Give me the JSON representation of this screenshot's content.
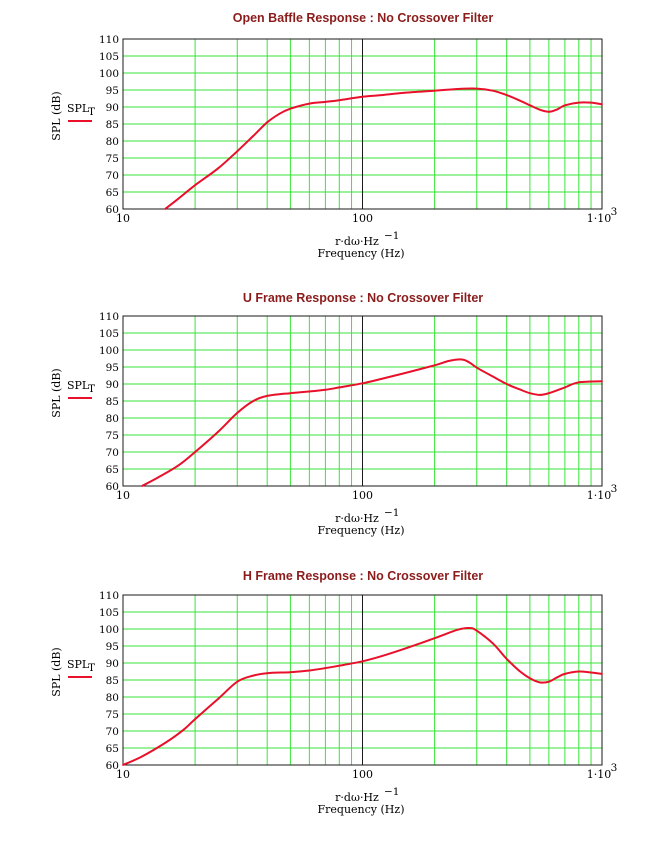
{
  "chart_data": [
    {
      "type": "line",
      "title": "Open Baffle Response : No Crossover Filter",
      "xlabel_expr": "r·dω·Hz",
      "xlabel_exp": "−1",
      "xlabel": "Frequency (Hz)",
      "ylabel": "SPL (dB)",
      "legend_main": "SPL",
      "legend_sub": "T",
      "xscale": "log",
      "xlim": [
        10,
        1000
      ],
      "ylim": [
        60,
        110
      ],
      "yticks": [
        "60",
        "65",
        "70",
        "75",
        "80",
        "85",
        "90",
        "95",
        "100",
        "105",
        "110"
      ],
      "xtick_labels": [
        "10",
        "100",
        "1·10",
        "3"
      ],
      "grid": true,
      "color": "#e8102a",
      "series": [
        {
          "x": [
            15,
            17,
            20,
            25,
            30,
            35,
            40,
            45,
            50,
            60,
            70,
            80,
            100,
            120,
            150,
            200,
            250,
            300,
            350,
            400,
            450,
            500,
            550,
            600,
            650,
            700,
            800,
            900,
            1000
          ],
          "values": [
            60,
            63,
            67,
            72,
            77,
            81.5,
            85.5,
            88,
            89.5,
            91,
            91.5,
            92,
            93,
            93.5,
            94.2,
            94.8,
            95.3,
            95.4,
            94.8,
            93.5,
            92,
            90.5,
            89.2,
            88.6,
            89.3,
            90.5,
            91.3,
            91.3,
            90.8
          ]
        }
      ]
    },
    {
      "type": "line",
      "title": "U Frame Response : No Crossover Filter",
      "xlabel_expr": "r·dω·Hz",
      "xlabel_exp": "−1",
      "xlabel": "Frequency (Hz)",
      "ylabel": "SPL (dB)",
      "legend_main": "SPL",
      "legend_sub": "T",
      "xscale": "log",
      "xlim": [
        10,
        1000
      ],
      "ylim": [
        60,
        110
      ],
      "yticks": [
        "60",
        "65",
        "70",
        "75",
        "80",
        "85",
        "90",
        "95",
        "100",
        "105",
        "110"
      ],
      "xtick_labels": [
        "10",
        "100",
        "1·10",
        "3"
      ],
      "grid": true,
      "color": "#e8102a",
      "series": [
        {
          "x": [
            12,
            14,
            17,
            20,
            25,
            30,
            35,
            40,
            50,
            60,
            70,
            80,
            100,
            120,
            150,
            200,
            230,
            260,
            280,
            300,
            350,
            400,
            450,
            500,
            550,
            600,
            700,
            800,
            1000
          ],
          "values": [
            60,
            62.5,
            66,
            70,
            76,
            81.5,
            85,
            86.5,
            87.3,
            87.8,
            88.3,
            89,
            90.2,
            91.5,
            93.2,
            95.5,
            96.8,
            97.2,
            96.3,
            94.8,
            92.2,
            90,
            88.5,
            87.3,
            86.8,
            87.3,
            89,
            90.5,
            90.8
          ]
        }
      ]
    },
    {
      "type": "line",
      "title": "H Frame Response : No Crossover Filter",
      "xlabel_expr": "r·dω·Hz",
      "xlabel_exp": "−1",
      "xlabel": "Frequency (Hz)",
      "ylabel": "SPL (dB)",
      "legend_main": "SPL",
      "legend_sub": "T",
      "xscale": "log",
      "xlim": [
        10,
        1000
      ],
      "ylim": [
        60,
        110
      ],
      "yticks": [
        "60",
        "65",
        "70",
        "75",
        "80",
        "85",
        "90",
        "95",
        "100",
        "105",
        "110"
      ],
      "xtick_labels": [
        "10",
        "100",
        "1·10",
        "3"
      ],
      "grid": true,
      "color": "#e8102a",
      "series": [
        {
          "x": [
            10,
            12,
            15,
            18,
            20,
            25,
            30,
            35,
            40,
            50,
            60,
            70,
            80,
            100,
            120,
            150,
            200,
            250,
            280,
            300,
            350,
            400,
            450,
            500,
            550,
            600,
            650,
            700,
            800,
            900,
            1000
          ],
          "values": [
            60,
            62.5,
            66.5,
            70.5,
            73.5,
            79.5,
            84.5,
            86.3,
            87,
            87.3,
            87.8,
            88.5,
            89.2,
            90.5,
            92,
            94.2,
            97.3,
            99.8,
            100.3,
            99.5,
            95.8,
            91.2,
            87.8,
            85.5,
            84.3,
            84.5,
            85.8,
            86.8,
            87.5,
            87.2,
            86.8
          ]
        }
      ]
    }
  ]
}
